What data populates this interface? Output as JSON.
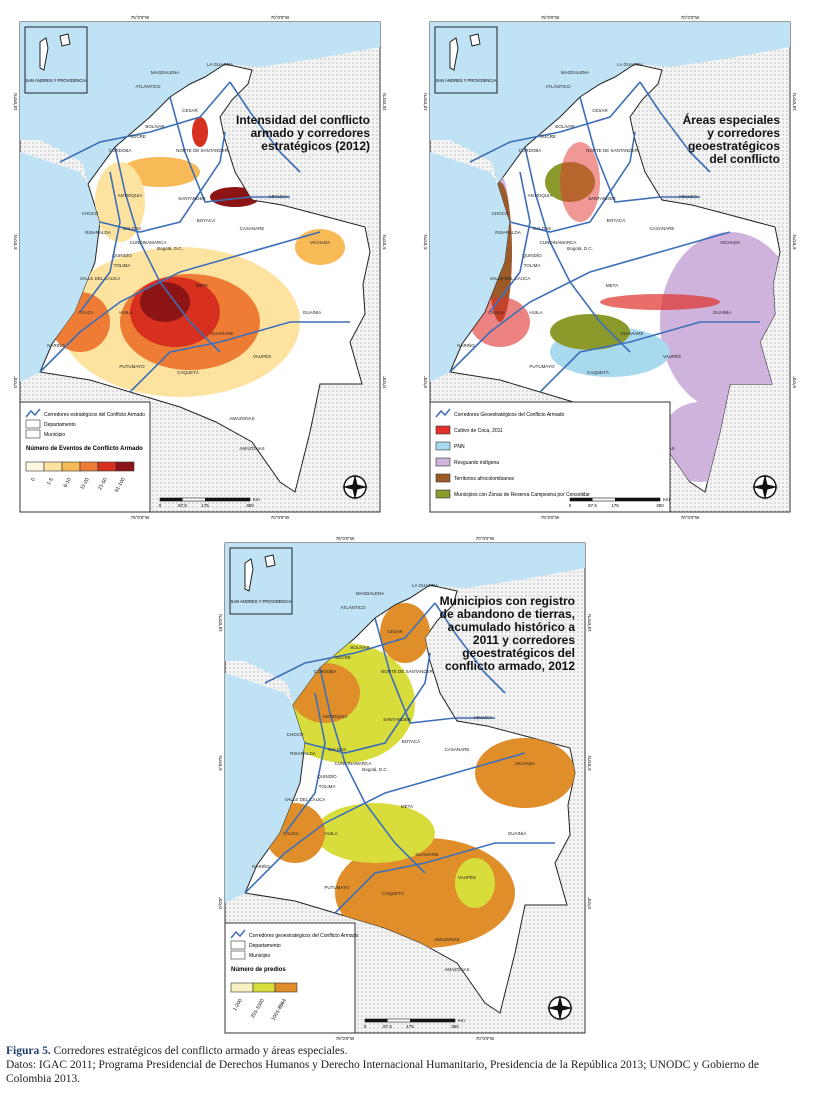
{
  "maps": [
    {
      "title": [
        "Intensidad del conflicto",
        "armado y corredores",
        "estratégicos (2012)"
      ],
      "legend": {
        "items": [
          {
            "label": "Corredores estratégicos del Conflicto Armado",
            "color": "#3d6fb8"
          },
          {
            "label": "Departamento",
            "color": "#ffffff"
          },
          {
            "label": "Municipio",
            "color": "#ffffff"
          }
        ],
        "class_title": "Número de Eventos de Conflicto Armado",
        "classes": [
          {
            "label": "0",
            "color": "#fff8e0"
          },
          {
            "label": "1-5",
            "color": "#fde2a0"
          },
          {
            "label": "6-10",
            "color": "#f8b957"
          },
          {
            "label": "11-20",
            "color": "#ee7c34"
          },
          {
            "label": "21-50",
            "color": "#d7301f"
          },
          {
            "label": "51-100",
            "color": "#8c1414"
          }
        ]
      }
    },
    {
      "title": [
        "Áreas especiales",
        "y corredores",
        "geoestratégicos",
        "del conflicto"
      ],
      "legend": {
        "items": [
          {
            "label": "Corredores Geoestratégicos del Conflicto Armado",
            "color": "#3d6fb8"
          },
          {
            "label": "Cultivo de Coca, 2011",
            "color": "#e0312b"
          },
          {
            "label": "PNN",
            "color": "#a9d9ee"
          },
          {
            "label": "Resguardo indígena",
            "color": "#cfb3dc"
          },
          {
            "label": "Territorios afrocolombianos",
            "color": "#9b5a28"
          },
          {
            "label": "Municipios con Zonas de Reserva Campesina por Consolidar",
            "color": "#8c9a2c"
          }
        ]
      }
    },
    {
      "title": [
        "Municipios con registro",
        "de abandono de tierras,",
        "acumulado histórico a",
        "2011 y corredores",
        "geoestratégicos del",
        "conflicto armado, 2012"
      ],
      "legend": {
        "items": [
          {
            "label": "Corredores geoestratégicos del Conflicto Armado",
            "color": "#3d6fb8"
          },
          {
            "label": "Departamento",
            "color": "#ffffff"
          },
          {
            "label": "Municipio",
            "color": "#ffffff"
          }
        ],
        "class_title": "Número de predios",
        "classes": [
          {
            "label": "1-200",
            "color": "#f7f0c0"
          },
          {
            "label": "201-1000",
            "color": "#d8dd3c"
          },
          {
            "label": "1001-8864",
            "color": "#e08e2a"
          }
        ]
      }
    }
  ],
  "inset": "SAN ANDRES Y PROVIDENCIA",
  "departments": [
    "LA GUAJIRA",
    "MAGDALENA",
    "ATLÁNTICO",
    "CESAR",
    "BOLÍVAR",
    "SUCRE",
    "CÓRDOBA",
    "NORTE DE SANTANDER",
    "ANTIOQUIA",
    "SANTANDER",
    "ARAUCA",
    "CHOCÓ",
    "RISARALDA",
    "CALDAS",
    "BOYACÁ",
    "CASANARE",
    "CUNDINAMARCA",
    "Bogotá, D.C.",
    "QUINDÍO",
    "TOLIMA",
    "VICHADA",
    "VALLE DEL CAUCA",
    "META",
    "CAUCA",
    "HUILA",
    "GUAVIARE",
    "GUAINÍA",
    "NARIÑO",
    "VAUPÉS",
    "PUTUMAYO",
    "CAQUETÁ",
    "AMAZONAS",
    "AMAZONAS"
  ],
  "graticule": {
    "lon": [
      "75°0'0\"W",
      "70°0'0\"W"
    ],
    "lat": [
      "10°0'0\"N",
      "5°0'0\"N",
      "0°0'0\""
    ]
  },
  "scale": {
    "unit": "Km",
    "labels": [
      "0",
      "87,5",
      "175",
      "350"
    ]
  },
  "caption": {
    "label": "Figura 5.",
    "text": "Corredores estratégicos del conflicto armado y áreas especiales.",
    "source": "Datos: IGAC 2011; Programa Presidencial de Derechos Humanos y Derecho Internacional Humanitario, Presidencia de la República 2013; UNODC y Gobierno de Colombia 2013."
  }
}
